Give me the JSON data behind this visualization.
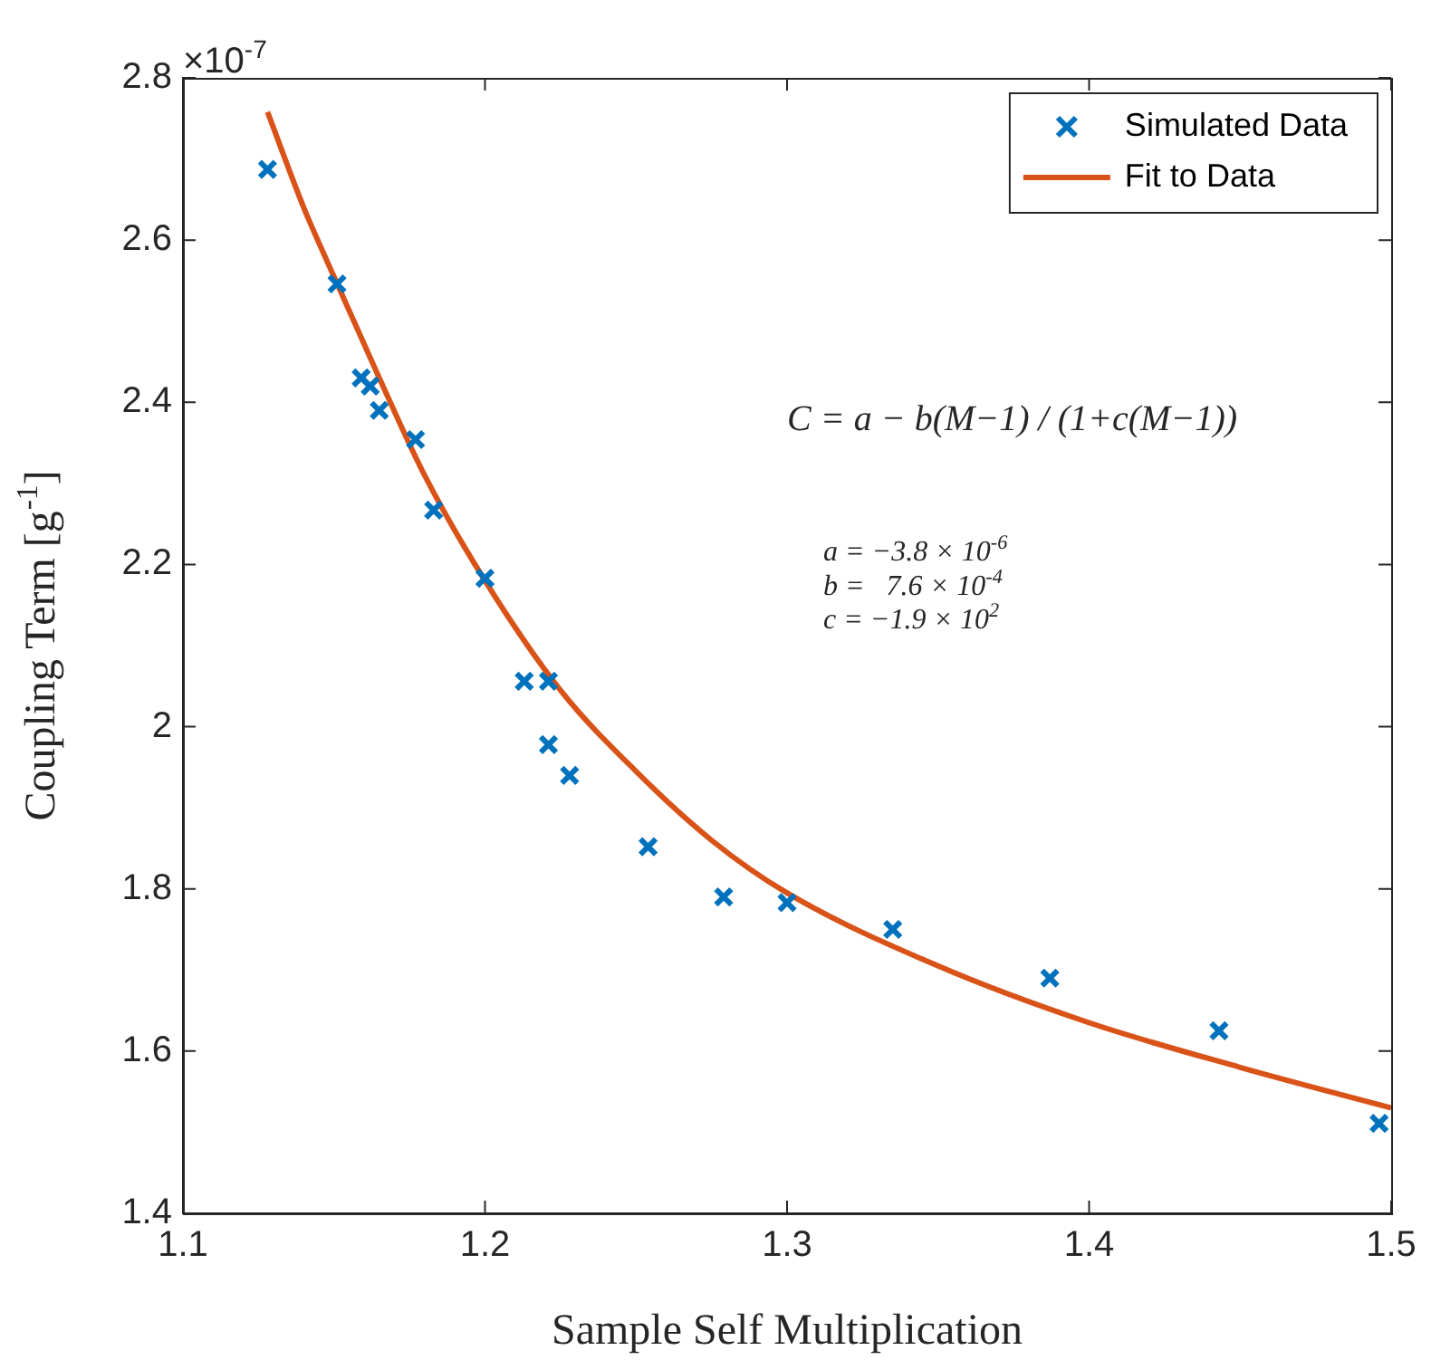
{
  "chart_data": {
    "type": "scatter",
    "xlabel": "Sample Self Multiplication",
    "ylabel": "Coupling Term [g$^{-1}$]",
    "annotations": [
      "×10$^{-7}$",
      "C = a − b(M−1) / (1+c(M−1))",
      "a = −3.8 × 10$^{-6}$",
      "b =   7.6 × 10$^{-4}$",
      "c = −1.9 × 10$^{2}$"
    ],
    "xlim": [
      1.1,
      1.5
    ],
    "ylim": [
      1.4,
      2.8
    ],
    "xticks": [
      1.1,
      1.2,
      1.3,
      1.4,
      1.5
    ],
    "yticks": [
      1.4,
      1.6,
      1.8,
      2,
      2.2,
      2.4,
      2.6,
      2.8
    ],
    "grid": false,
    "legend": "top right",
    "series": [
      {
        "name": "Simulated Data",
        "type": "scatter",
        "marker": "cross",
        "color": "#0072bd",
        "x": [
          1.128,
          1.151,
          1.159,
          1.162,
          1.165,
          1.177,
          1.183,
          1.2,
          1.213,
          1.221,
          1.221,
          1.228,
          1.254,
          1.279,
          1.3,
          1.335,
          1.387,
          1.443,
          1.496
        ],
        "values": [
          2.687,
          2.546,
          2.43,
          2.42,
          2.39,
          2.354,
          2.267,
          2.183,
          2.056,
          2.056,
          1.978,
          1.94,
          1.852,
          1.79,
          1.783,
          1.75,
          1.69,
          1.625,
          1.511
        ]
      },
      {
        "name": "Fit to Data",
        "type": "line",
        "marker": "none",
        "color": "#d95319",
        "x": [
          1.128,
          1.14,
          1.15,
          1.165,
          1.18,
          1.2,
          1.225,
          1.25,
          1.275,
          1.3,
          1.35,
          1.4,
          1.45,
          1.5
        ],
        "values": [
          2.758,
          2.64,
          2.555,
          2.43,
          2.31,
          2.18,
          2.045,
          1.945,
          1.86,
          1.795,
          1.705,
          1.635,
          1.58,
          1.53
        ]
      }
    ]
  }
}
